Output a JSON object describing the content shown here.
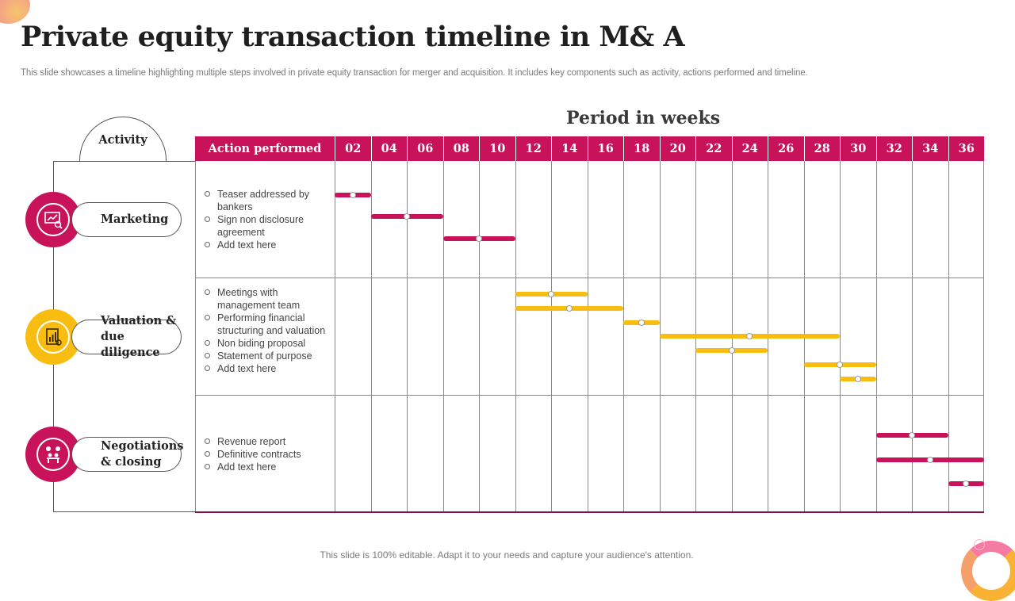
{
  "title": "Private equity transaction timeline in M& A",
  "subtitle": "This slide showcases a timeline highlighting multiple steps involved in private equity transaction for merger and acquisition. It includes key components such as activity, actions performed and timeline.",
  "period_label": "Period in weeks",
  "activity_header": "Activity",
  "action_header": "Action performed",
  "footer": "This slide is 100% editable. Adapt it to your needs and capture your audience's attention.",
  "colors": {
    "accent": "#c8135a",
    "secondary": "#f9bd12"
  },
  "weeks": [
    "02",
    "04",
    "06",
    "08",
    "10",
    "12",
    "14",
    "16",
    "18",
    "20",
    "22",
    "24",
    "26",
    "28",
    "30",
    "32",
    "34",
    "36"
  ],
  "activities": [
    {
      "label": "Marketing",
      "icon": "presentation-chart-icon",
      "color": "pink",
      "actions": [
        "Teaser addressed by bankers",
        "Sign non disclosure agreement",
        "Add text here"
      ]
    },
    {
      "label": "Valuation & due diligence",
      "icon": "report-document-icon",
      "color": "yellow",
      "actions": [
        "Meetings with management team",
        "Performing financial structuring and valuation",
        "Non biding proposal",
        "Statement of purpose",
        "Add text here"
      ]
    },
    {
      "label": "Negotiations & closing",
      "icon": "meeting-handshake-icon",
      "color": "pink",
      "actions": [
        "Revenue  report",
        "Definitive  contracts",
        "Add text here"
      ]
    }
  ],
  "chart_data": {
    "type": "gantt",
    "x_unit": "weeks",
    "tasks": [
      {
        "activity": 0,
        "start": 2,
        "end": 4
      },
      {
        "activity": 0,
        "start": 4,
        "end": 8
      },
      {
        "activity": 0,
        "start": 8,
        "end": 12
      },
      {
        "activity": 1,
        "start": 12,
        "end": 16
      },
      {
        "activity": 1,
        "start": 12,
        "end": 18
      },
      {
        "activity": 1,
        "start": 18,
        "end": 20
      },
      {
        "activity": 1,
        "start": 20,
        "end": 30
      },
      {
        "activity": 1,
        "start": 22,
        "end": 26
      },
      {
        "activity": 1,
        "start": 28,
        "end": 32
      },
      {
        "activity": 1,
        "start": 30,
        "end": 32
      },
      {
        "activity": 2,
        "start": 32,
        "end": 36
      },
      {
        "activity": 2,
        "start": 32,
        "end": 38
      },
      {
        "activity": 2,
        "start": 36,
        "end": 38
      }
    ]
  }
}
